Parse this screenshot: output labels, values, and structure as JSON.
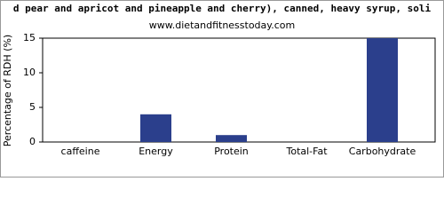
{
  "chart_data": {
    "type": "bar",
    "title": "d pear and apricot and pineapple and cherry), canned, heavy syrup, soli",
    "subtitle": "www.dietandfitnesstoday.com",
    "y_label": "Percentage of RDH (%)",
    "categories": [
      "caffeine",
      "Energy",
      "Protein",
      "Total-Fat",
      "Carbohydrate"
    ],
    "values": [
      0,
      4,
      1,
      0,
      15
    ],
    "color": "#2b3f8c",
    "ylim": [
      0,
      15
    ],
    "yticks": [
      0,
      5,
      10,
      15
    ],
    "grid": false
  }
}
